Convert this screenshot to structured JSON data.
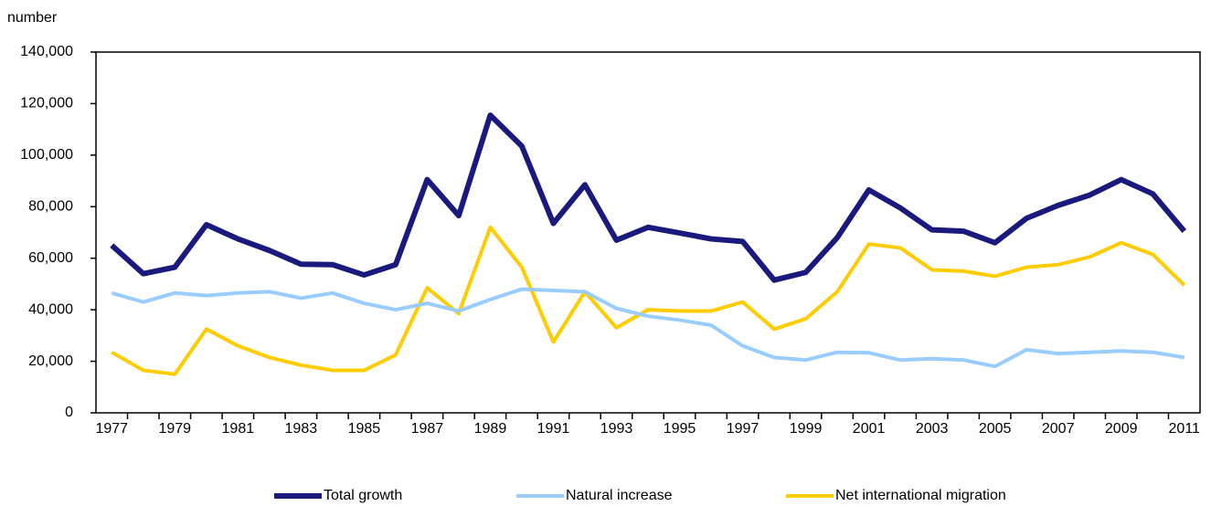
{
  "chart_data": {
    "type": "line",
    "y_label": "number",
    "categories": [
      "1977",
      null,
      "1979",
      null,
      "1981",
      null,
      "1983",
      null,
      "1985",
      null,
      "1987",
      null,
      "1989",
      null,
      "1991",
      null,
      "1993",
      null,
      "1995",
      null,
      "1997",
      null,
      "1999",
      null,
      "2001",
      null,
      "2003",
      null,
      "2005",
      null,
      "2007",
      null,
      "2009",
      null,
      "2011"
    ],
    "series": [
      {
        "name": "Total growth",
        "color": "#1a1a7e",
        "values": [
          65000,
          54000,
          56500,
          73000,
          67500,
          63000,
          57700,
          57500,
          53500,
          57500,
          90500,
          76500,
          115500,
          103500,
          73500,
          88500,
          67000,
          72000,
          69800,
          67500,
          66500,
          51500,
          54500,
          68000,
          86500,
          79500,
          71000,
          70500,
          66000,
          75500,
          80500,
          84500,
          90500,
          85000,
          70500
        ]
      },
      {
        "name": "Natural increase",
        "color": "#99ccff",
        "values": [
          46500,
          43000,
          46500,
          45500,
          46500,
          47000,
          44500,
          46500,
          42500,
          40000,
          42500,
          39500,
          44000,
          48000,
          47500,
          47000,
          40500,
          37500,
          36000,
          34000,
          26000,
          21500,
          20500,
          23500,
          23300,
          20500,
          21000,
          20500,
          18000,
          24500,
          23000,
          23500,
          24000,
          23500,
          21500
        ]
      },
      {
        "name": "Net international migration",
        "color": "#ffcc00",
        "values": [
          23500,
          16500,
          15000,
          32500,
          26000,
          21500,
          18500,
          16500,
          16500,
          22500,
          48500,
          38500,
          72000,
          56500,
          27500,
          47000,
          33000,
          40000,
          39500,
          39500,
          43000,
          32500,
          36500,
          47000,
          65500,
          64000,
          55500,
          55000,
          53000,
          56500,
          57500,
          60500,
          66000,
          61500,
          49500
        ]
      }
    ],
    "ylim": [
      0,
      140000
    ],
    "yticks": [
      0,
      {
        "value": 20000,
        "label": "20,000"
      },
      {
        "value": 40000,
        "label": "40,000"
      },
      {
        "value": 60000,
        "label": "60,000"
      },
      {
        "value": 80000,
        "label": "80,000"
      },
      {
        "value": 100000,
        "label": "100,000"
      },
      {
        "value": 120000,
        "label": "120,000"
      },
      {
        "value": 140000,
        "label": "140,000"
      }
    ],
    "grid": false,
    "legend": "bottom"
  }
}
